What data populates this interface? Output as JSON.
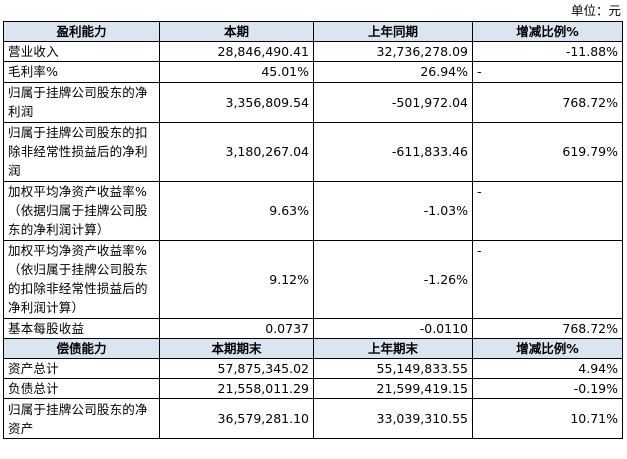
{
  "unit_label": "单位：元",
  "profit_section": {
    "headers": [
      "盈利能力",
      "本期",
      "上年同期",
      "增减比例%"
    ],
    "rows": [
      {
        "label": "营业收入",
        "current": "28,846,490.41",
        "previous": "32,736,278.09",
        "change": "-11.88%"
      },
      {
        "label": "毛利率%",
        "current": "45.01%",
        "previous": "26.94%",
        "change": "-"
      },
      {
        "label": "归属于挂牌公司股东的净利润",
        "current": "3,356,809.54",
        "previous": "-501,972.04",
        "change": "768.72%"
      },
      {
        "label": "归属于挂牌公司股东的扣除非经常性损益后的净利润",
        "current": "3,180,267.04",
        "previous": "-611,833.46",
        "change": "619.79%"
      },
      {
        "label": "加权平均净资产收益率%（依据归属于挂牌公司股东的净利润计算）",
        "current": "9.63%",
        "previous": "-1.03%",
        "change": "-"
      },
      {
        "label": "加权平均净资产收益率%（依归属于挂牌公司股东的扣除非经常性损益后的净利润计算）",
        "current": "9.12%",
        "previous": "-1.26%",
        "change": "-"
      },
      {
        "label": "基本每股收益",
        "current": "0.0737",
        "previous": "-0.0110",
        "change": "768.72%"
      }
    ]
  },
  "solvency_section": {
    "headers": [
      "偿债能力",
      "本期期末",
      "上年期末",
      "增减比例%"
    ],
    "rows": [
      {
        "label": "资产总计",
        "current": "57,875,345.02",
        "previous": "55,149,833.55",
        "change": "4.94%"
      },
      {
        "label": "负债总计",
        "current": "21,558,011.29",
        "previous": "21,599,419.15",
        "change": "-0.19%"
      },
      {
        "label": "归属于挂牌公司股东的净资产",
        "current": "36,579,281.10",
        "previous": "33,039,310.55",
        "change": "10.71%"
      }
    ]
  }
}
